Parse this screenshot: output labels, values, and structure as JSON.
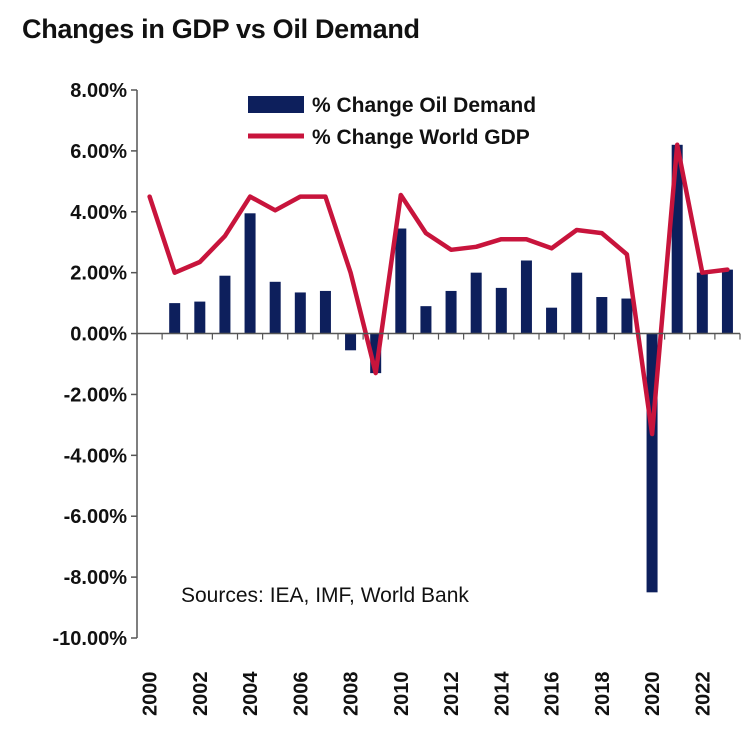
{
  "chart_data": {
    "type": "bar",
    "title": "Changes in GDP vs Oil Demand",
    "xlabel": "",
    "ylabel": "",
    "ylim": [
      -10,
      8
    ],
    "y_ticks": [
      "8.00%",
      "6.00%",
      "4.00%",
      "2.00%",
      "0.00%",
      "-2.00%",
      "-4.00%",
      "-6.00%",
      "-8.00%",
      "-10.00%"
    ],
    "y_tick_values": [
      8,
      6,
      4,
      2,
      0,
      -2,
      -4,
      -6,
      -8,
      -10
    ],
    "categories": [
      "2000",
      "2001",
      "2002",
      "2003",
      "2004",
      "2005",
      "2006",
      "2007",
      "2008",
      "2009",
      "2010",
      "2011",
      "2012",
      "2013",
      "2014",
      "2015",
      "2016",
      "2017",
      "2018",
      "2019",
      "2020",
      "2021",
      "2022",
      "2023"
    ],
    "x_tick_labels": [
      "2000",
      "2002",
      "2004",
      "2006",
      "2008",
      "2010",
      "2012",
      "2014",
      "2016",
      "2018",
      "2020",
      "2022"
    ],
    "series": [
      {
        "name": "% Change Oil Demand",
        "kind": "bar",
        "color": "#0d1f5c",
        "values": [
          null,
          1.0,
          1.05,
          1.9,
          3.95,
          1.7,
          1.35,
          1.4,
          -0.55,
          -1.3,
          3.45,
          0.9,
          1.4,
          2.0,
          1.5,
          2.4,
          0.85,
          2.0,
          1.2,
          1.15,
          -8.5,
          6.2,
          2.0,
          2.1
        ]
      },
      {
        "name": "% Change World GDP",
        "kind": "line",
        "color": "#c8143c",
        "values": [
          4.5,
          2.0,
          2.35,
          3.2,
          4.5,
          4.05,
          4.5,
          4.5,
          2.0,
          -1.3,
          4.55,
          3.3,
          2.75,
          2.85,
          3.1,
          3.1,
          2.8,
          3.4,
          3.3,
          2.6,
          -3.3,
          6.2,
          2.0,
          2.1
        ]
      }
    ],
    "legend": "top-center",
    "annotation": "Sources: IEA, IMF, World Bank",
    "grid": false
  }
}
